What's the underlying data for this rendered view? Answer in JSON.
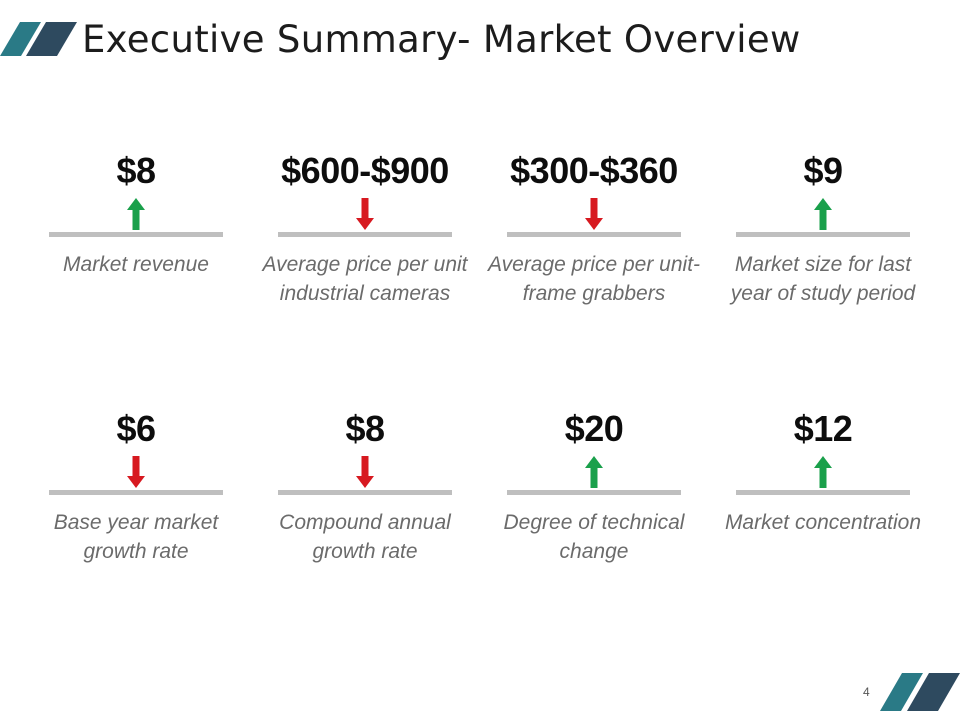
{
  "slide": {
    "title": "Executive Summary- Market Overview",
    "page_number": "4"
  },
  "colors": {
    "accent_teal": "#2a7a86",
    "accent_navy": "#2e4a5f",
    "up": "#1aa04b",
    "down": "#d71920"
  },
  "metrics": [
    {
      "value": "$8",
      "direction": "up",
      "label": "Market revenue"
    },
    {
      "value": "$600-$900",
      "direction": "down",
      "label": "Average price per unit industrial cameras"
    },
    {
      "value": "$300-$360",
      "direction": "down",
      "label": "Average price per unit-frame grabbers"
    },
    {
      "value": "$9",
      "direction": "up",
      "label": "Market size for last year of study period"
    },
    {
      "value": "$6",
      "direction": "down",
      "label": "Base year market growth rate"
    },
    {
      "value": "$8",
      "direction": "down",
      "label": "Compound annual growth rate"
    },
    {
      "value": "$20",
      "direction": "up",
      "label": "Degree of technical change"
    },
    {
      "value": "$12",
      "direction": "up",
      "label": "Market concentration"
    }
  ]
}
